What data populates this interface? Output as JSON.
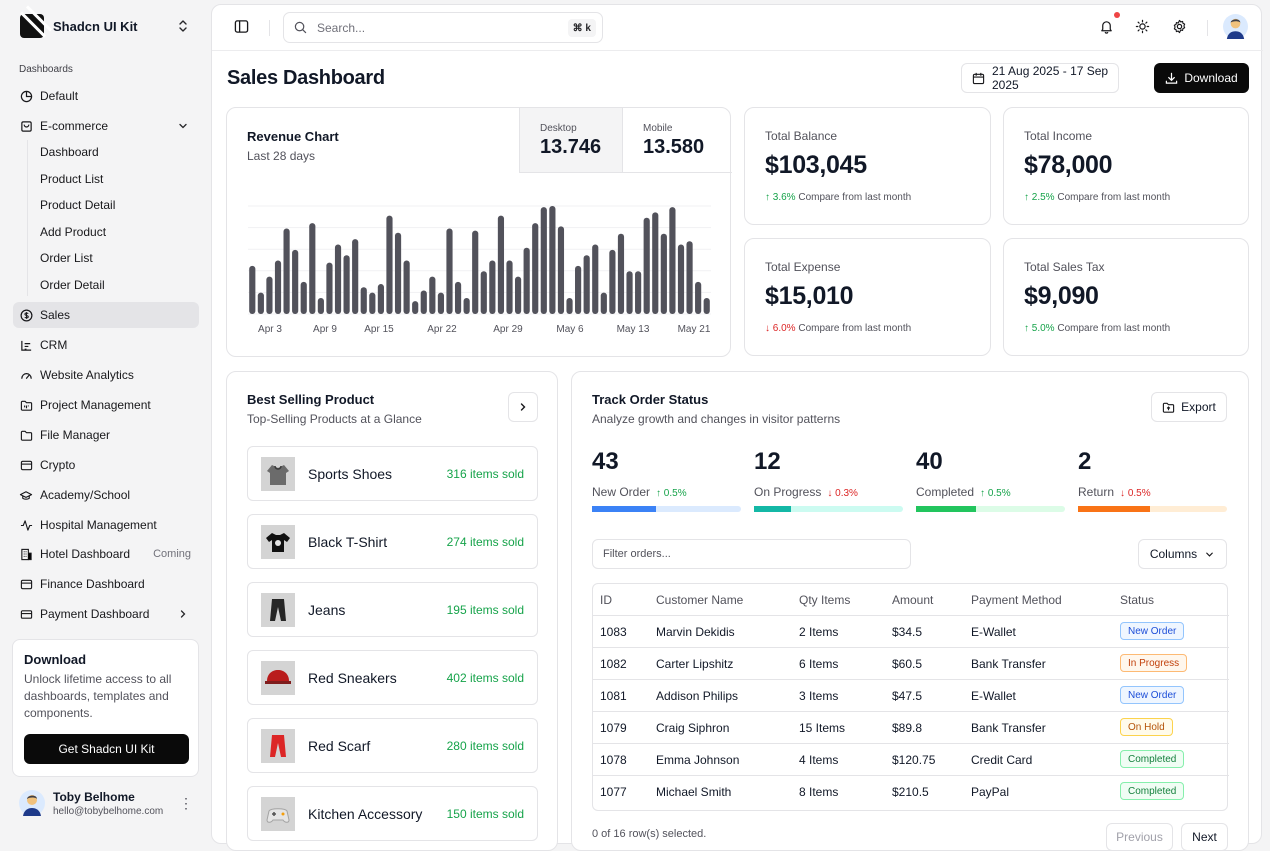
{
  "app": {
    "name": "Shadcn UI Kit"
  },
  "sidebar": {
    "section_label": "Dashboards",
    "items": [
      {
        "label": "Default",
        "icon": "pie-chart-icon"
      },
      {
        "label": "E-commerce",
        "icon": "shopping-bag-icon"
      },
      {
        "label": "Sales",
        "icon": "dollar-circle-icon"
      },
      {
        "label": "CRM",
        "icon": "chart-bar-icon"
      },
      {
        "label": "Website Analytics",
        "icon": "gauge-icon"
      },
      {
        "label": "Project Management",
        "icon": "folder-kanban-icon"
      },
      {
        "label": "File Manager",
        "icon": "folder-icon"
      },
      {
        "label": "Crypto",
        "icon": "wallet-icon"
      },
      {
        "label": "Academy/School",
        "icon": "graduation-cap-icon"
      },
      {
        "label": "Hospital Management",
        "icon": "activity-icon"
      },
      {
        "label": "Hotel Dashboard",
        "icon": "building-icon",
        "badge": "Coming"
      },
      {
        "label": "Finance Dashboard",
        "icon": "wallet-icon"
      },
      {
        "label": "Payment Dashboard",
        "icon": "credit-card-icon"
      }
    ],
    "ecommerce_sub": [
      "Dashboard",
      "Product List",
      "Product Detail",
      "Add Product",
      "Order List",
      "Order Detail"
    ]
  },
  "promo": {
    "title": "Download",
    "text": "Unlock lifetime access to all dashboards, templates and components.",
    "button": "Get Shadcn UI Kit"
  },
  "user": {
    "name": "Toby Belhome",
    "email": "hello@tobybelhome.com"
  },
  "topbar": {
    "search_placeholder": "Search...",
    "shortcut": "⌘ k"
  },
  "page": {
    "title": "Sales Dashboard",
    "date_range": "21 Aug 2025 - 17 Sep 2025",
    "download_label": "Download"
  },
  "revenue": {
    "title": "Revenue Chart",
    "subtitle": "Last 28 days",
    "desktop_label": "Desktop",
    "desktop_value": "13.746",
    "mobile_label": "Mobile",
    "mobile_value": "13.580"
  },
  "chart_data": {
    "type": "bar",
    "title": "Revenue Chart",
    "x_ticks": [
      "Apr 3",
      "Apr 9",
      "Apr 15",
      "Apr 22",
      "Apr 29",
      "May 6",
      "May 13",
      "May 21"
    ],
    "values": [
      45,
      20,
      35,
      50,
      80,
      60,
      30,
      85,
      15,
      48,
      65,
      55,
      70,
      25,
      20,
      28,
      92,
      76,
      50,
      12,
      22,
      35,
      20,
      80,
      30,
      15,
      78,
      40,
      50,
      92,
      50,
      35,
      62,
      85,
      100,
      101,
      82,
      15,
      45,
      55,
      65,
      20,
      60,
      75,
      40,
      40,
      90,
      95,
      75,
      100,
      65,
      68,
      30,
      15
    ],
    "color": "#52525b"
  },
  "stats": [
    {
      "label": "Total Balance",
      "value": "$103,045",
      "dir": "up",
      "change": "3.6%",
      "note": "Compare from last month"
    },
    {
      "label": "Total Income",
      "value": "$78,000",
      "dir": "up",
      "change": "2.5%",
      "note": "Compare from last month"
    },
    {
      "label": "Total Expense",
      "value": "$15,010",
      "dir": "down",
      "change": "6.0%",
      "note": "Compare from last month"
    },
    {
      "label": "Total Sales Tax",
      "value": "$9,090",
      "dir": "up",
      "change": "5.0%",
      "note": "Compare from last month"
    }
  ],
  "best_selling": {
    "title": "Best Selling Product",
    "subtitle": "Top-Selling Products at a Glance",
    "products": [
      {
        "name": "Sports Shoes",
        "sold": "316 items sold",
        "thumb": "hoodie"
      },
      {
        "name": "Black T-Shirt",
        "sold": "274 items sold",
        "thumb": "tshirt"
      },
      {
        "name": "Jeans",
        "sold": "195 items sold",
        "thumb": "pants"
      },
      {
        "name": "Red Sneakers",
        "sold": "402 items sold",
        "thumb": "cap"
      },
      {
        "name": "Red Scarf",
        "sold": "280 items sold",
        "thumb": "redpants"
      },
      {
        "name": "Kitchen Accessory",
        "sold": "150 items sold",
        "thumb": "controller"
      }
    ]
  },
  "orders": {
    "title": "Track Order Status",
    "subtitle": "Analyze growth and changes in visitor patterns",
    "export_label": "Export",
    "metrics": [
      {
        "value": "43",
        "label": "New Order",
        "dir": "up",
        "change": "0.5%",
        "progress": 0.43,
        "color": "#3b82f6",
        "track": "#dbeafe"
      },
      {
        "value": "12",
        "label": "On Progress",
        "dir": "down",
        "change": "0.3%",
        "progress": 0.25,
        "color": "#14b8a6",
        "track": "#ccfbf1"
      },
      {
        "value": "40",
        "label": "Completed",
        "dir": "up",
        "change": "0.5%",
        "progress": 0.4,
        "color": "#22c55e",
        "track": "#dcfce7"
      },
      {
        "value": "2",
        "label": "Return",
        "dir": "down",
        "change": "0.5%",
        "progress": 0.48,
        "color": "#f97316",
        "track": "#ffedd5"
      }
    ],
    "filter_placeholder": "Filter orders...",
    "columns_label": "Columns",
    "headers": [
      "ID",
      "Customer Name",
      "Qty Items",
      "Amount",
      "Payment Method",
      "Status"
    ],
    "rows": [
      {
        "id": "1083",
        "customer": "Marvin Dekidis",
        "qty": "2 Items",
        "amount": "$34.5",
        "method": "E-Wallet",
        "status": "New Order"
      },
      {
        "id": "1082",
        "customer": "Carter Lipshitz",
        "qty": "6 Items",
        "amount": "$60.5",
        "method": "Bank Transfer",
        "status": "In Progress"
      },
      {
        "id": "1081",
        "customer": "Addison Philips",
        "qty": "3 Items",
        "amount": "$47.5",
        "method": "E-Wallet",
        "status": "New Order"
      },
      {
        "id": "1079",
        "customer": "Craig Siphron",
        "qty": "15 Items",
        "amount": "$89.8",
        "method": "Bank Transfer",
        "status": "On Hold"
      },
      {
        "id": "1078",
        "customer": "Emma Johnson",
        "qty": "4 Items",
        "amount": "$120.75",
        "method": "Credit Card",
        "status": "Completed"
      },
      {
        "id": "1077",
        "customer": "Michael Smith",
        "qty": "8 Items",
        "amount": "$210.5",
        "method": "PayPal",
        "status": "Completed"
      }
    ],
    "status_styles": {
      "New Order": {
        "color": "#1d4ed8",
        "bg": "#eff6ff",
        "border": "#93c5fd"
      },
      "In Progress": {
        "color": "#c2410c",
        "bg": "#fff7ed",
        "border": "#fdba74"
      },
      "On Hold": {
        "color": "#b45309",
        "bg": "#fffbeb",
        "border": "#fcd34d"
      },
      "Completed": {
        "color": "#15803d",
        "bg": "#f0fdf4",
        "border": "#86efac"
      }
    },
    "selection_text": "0 of 16 row(s) selected.",
    "prev_label": "Previous",
    "next_label": "Next"
  }
}
